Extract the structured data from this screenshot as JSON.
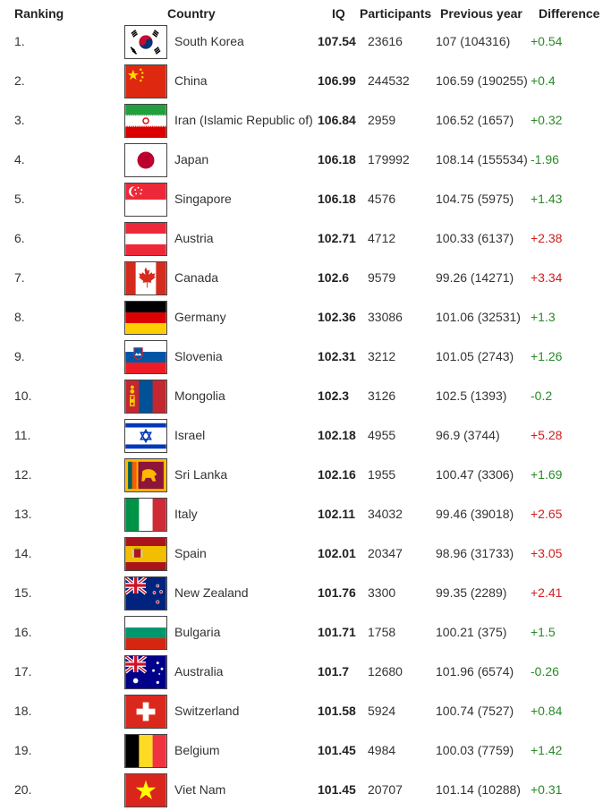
{
  "headers": {
    "ranking": "Ranking",
    "country": "Country",
    "iq": "IQ",
    "participants": "Participants",
    "previous_year": "Previous year",
    "difference": "Difference"
  },
  "rows": [
    {
      "rank": "1.",
      "country": "South Korea",
      "iq": "107.54",
      "participants": "23616",
      "previous": "107 (104316)",
      "diff": "+0.54",
      "diff_color": "#2a8a2a",
      "flag": "south-korea-flag"
    },
    {
      "rank": "2.",
      "country": "China",
      "iq": "106.99",
      "participants": "244532",
      "previous": "106.59 (190255)",
      "diff": "+0.4",
      "diff_color": "#2a8a2a",
      "flag": "china-flag"
    },
    {
      "rank": "3.",
      "country": "Iran (Islamic Republic of)",
      "iq": "106.84",
      "participants": "2959",
      "previous": "106.52 (1657)",
      "diff": "+0.32",
      "diff_color": "#2a8a2a",
      "flag": "iran-flag"
    },
    {
      "rank": "4.",
      "country": "Japan",
      "iq": "106.18",
      "participants": "179992",
      "previous": "108.14 (155534)",
      "diff": "-1.96",
      "diff_color": "#2a8a2a",
      "flag": "japan-flag"
    },
    {
      "rank": "5.",
      "country": "Singapore",
      "iq": "106.18",
      "participants": "4576",
      "previous": "104.75 (5975)",
      "diff": "+1.43",
      "diff_color": "#2a8a2a",
      "flag": "singapore-flag"
    },
    {
      "rank": "6.",
      "country": "Austria",
      "iq": "102.71",
      "participants": "4712",
      "previous": "100.33 (6137)",
      "diff": "+2.38",
      "diff_color": "#d02020",
      "flag": "austria-flag"
    },
    {
      "rank": "7.",
      "country": "Canada",
      "iq": "102.6",
      "participants": "9579",
      "previous": "99.26 (14271)",
      "diff": "+3.34",
      "diff_color": "#d02020",
      "flag": "canada-flag"
    },
    {
      "rank": "8.",
      "country": "Germany",
      "iq": "102.36",
      "participants": "33086",
      "previous": "101.06 (32531)",
      "diff": "+1.3",
      "diff_color": "#2a8a2a",
      "flag": "germany-flag"
    },
    {
      "rank": "9.",
      "country": "Slovenia",
      "iq": "102.31",
      "participants": "3212",
      "previous": "101.05 (2743)",
      "diff": "+1.26",
      "diff_color": "#2a8a2a",
      "flag": "slovenia-flag"
    },
    {
      "rank": "10.",
      "country": "Mongolia",
      "iq": "102.3",
      "participants": "3126",
      "previous": "102.5 (1393)",
      "diff": "-0.2",
      "diff_color": "#2a8a2a",
      "flag": "mongolia-flag"
    },
    {
      "rank": "11.",
      "country": "Israel",
      "iq": "102.18",
      "participants": "4955",
      "previous": "96.9 (3744)",
      "diff": "+5.28",
      "diff_color": "#d02020",
      "flag": "israel-flag"
    },
    {
      "rank": "12.",
      "country": "Sri Lanka",
      "iq": "102.16",
      "participants": "1955",
      "previous": "100.47 (3306)",
      "diff": "+1.69",
      "diff_color": "#2a8a2a",
      "flag": "sri-lanka-flag"
    },
    {
      "rank": "13.",
      "country": "Italy",
      "iq": "102.11",
      "participants": "34032",
      "previous": "99.46 (39018)",
      "diff": "+2.65",
      "diff_color": "#d02020",
      "flag": "italy-flag"
    },
    {
      "rank": "14.",
      "country": "Spain",
      "iq": "102.01",
      "participants": "20347",
      "previous": "98.96 (31733)",
      "diff": "+3.05",
      "diff_color": "#d02020",
      "flag": "spain-flag"
    },
    {
      "rank": "15.",
      "country": "New Zealand",
      "iq": "101.76",
      "participants": "3300",
      "previous": "99.35 (2289)",
      "diff": "+2.41",
      "diff_color": "#d02020",
      "flag": "new-zealand-flag"
    },
    {
      "rank": "16.",
      "country": "Bulgaria",
      "iq": "101.71",
      "participants": "1758",
      "previous": "100.21 (375)",
      "diff": "+1.5",
      "diff_color": "#2a8a2a",
      "flag": "bulgaria-flag"
    },
    {
      "rank": "17.",
      "country": "Australia",
      "iq": "101.7",
      "participants": "12680",
      "previous": "101.96 (6574)",
      "diff": "-0.26",
      "diff_color": "#2a8a2a",
      "flag": "australia-flag"
    },
    {
      "rank": "18.",
      "country": "Switzerland",
      "iq": "101.58",
      "participants": "5924",
      "previous": "100.74 (7527)",
      "diff": "+0.84",
      "diff_color": "#2a8a2a",
      "flag": "switzerland-flag"
    },
    {
      "rank": "19.",
      "country": "Belgium",
      "iq": "101.45",
      "participants": "4984",
      "previous": "100.03 (7759)",
      "diff": "+1.42",
      "diff_color": "#2a8a2a",
      "flag": "belgium-flag"
    },
    {
      "rank": "20.",
      "country": "Viet Nam",
      "iq": "101.45",
      "participants": "20707",
      "previous": "101.14 (10288)",
      "diff": "+0.31",
      "diff_color": "#2a8a2a",
      "flag": "viet-nam-flag"
    }
  ]
}
